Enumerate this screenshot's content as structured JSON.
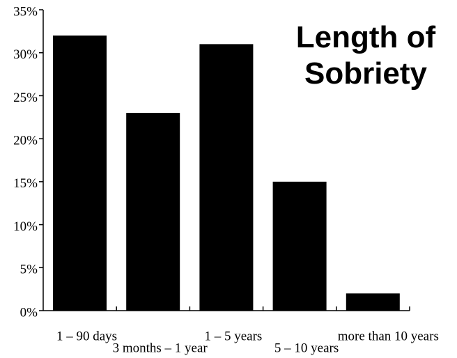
{
  "chart_data": {
    "type": "bar",
    "title": "Length of Sobriety",
    "categories": [
      "1 – 90 days",
      "3 months – 1 year",
      "1 – 5 years",
      "5 – 10 years",
      "more than 10 years"
    ],
    "values": [
      32,
      23,
      31,
      15,
      2
    ],
    "color": "#000000",
    "ylim": [
      0,
      35
    ],
    "yticks": [
      {
        "value": 0,
        "label": "0%"
      },
      {
        "value": 5,
        "label": "5%"
      },
      {
        "value": 10,
        "label": "10%"
      },
      {
        "value": 15,
        "label": "15%"
      },
      {
        "value": 20,
        "label": "20%"
      },
      {
        "value": 25,
        "label": "25%"
      },
      {
        "value": 30,
        "label": "30%"
      },
      {
        "value": 35,
        "label": "35%"
      }
    ],
    "grid": false
  }
}
